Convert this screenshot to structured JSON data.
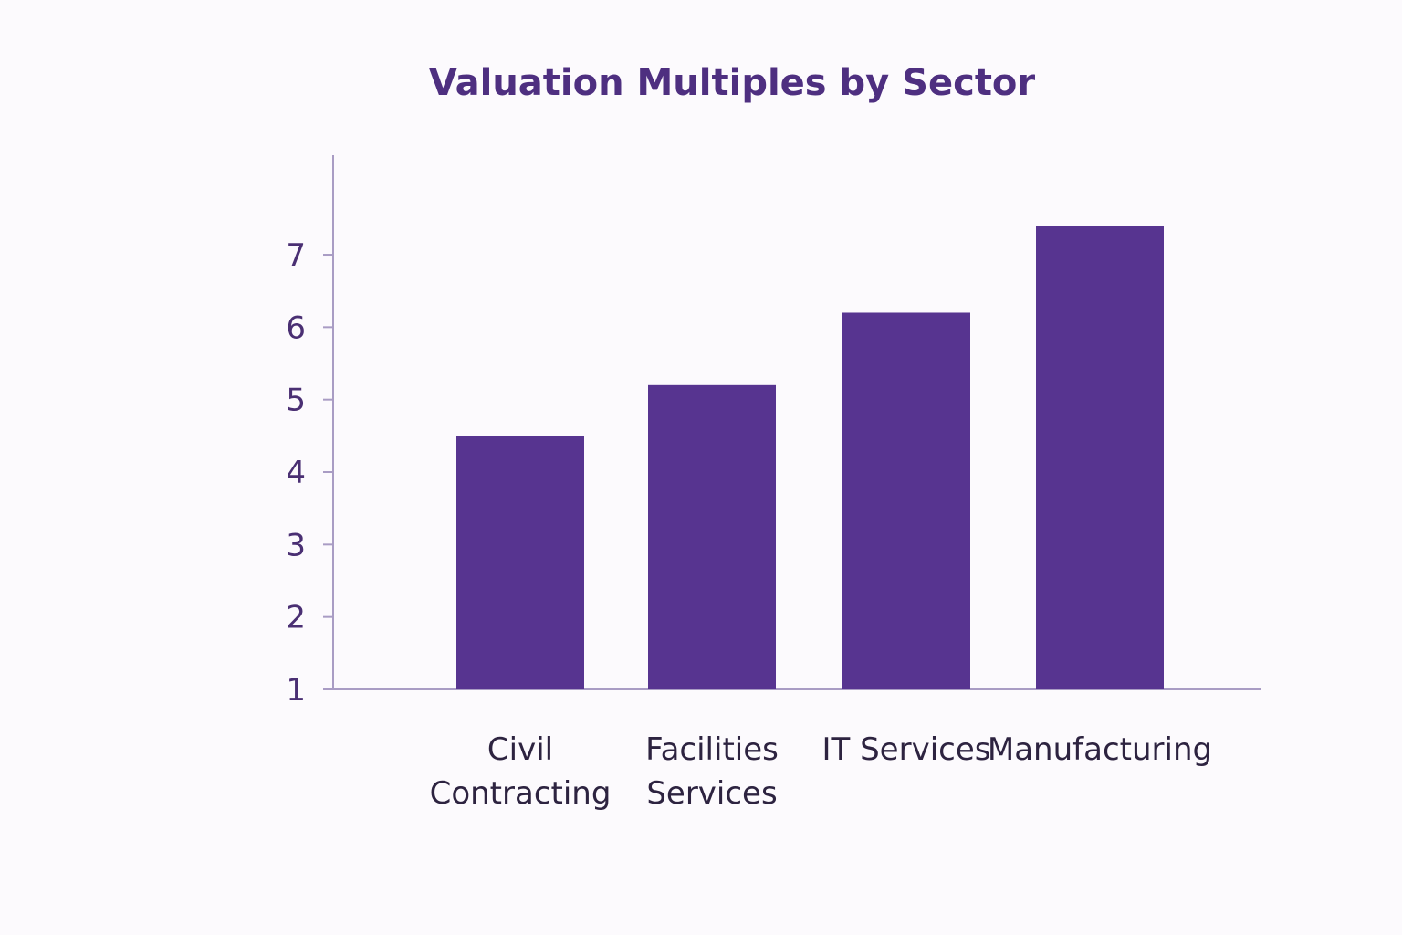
{
  "chart_data": {
    "type": "bar",
    "title": "Valuation Multiples by Sector",
    "xlabel": "",
    "ylabel": "",
    "categories": [
      "Civil Contracting",
      "Facilities Services",
      "IT Services",
      "Manufacturing"
    ],
    "values": [
      4.5,
      5.2,
      6.2,
      7.4
    ],
    "yticks": [
      1,
      2,
      3,
      4,
      5,
      6,
      7
    ],
    "ylim": [
      1,
      8.4
    ],
    "grid": false,
    "colors": {
      "bar": "#573490",
      "axis": "#a99cc4",
      "title": "#4e2f80"
    }
  }
}
